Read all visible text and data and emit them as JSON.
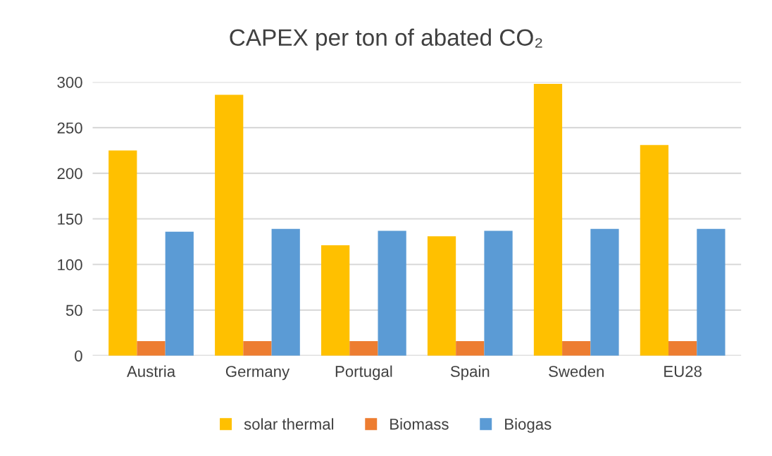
{
  "chart_data": {
    "type": "bar",
    "title": "CAPEX per ton of abated CO₂",
    "categories": [
      "Austria",
      "Germany",
      "Portugal",
      "Spain",
      "Sweden",
      "EU28"
    ],
    "series": [
      {
        "name": "solar thermal",
        "color": "#ffc000",
        "values": [
          225,
          286,
          121,
          131,
          298,
          231
        ]
      },
      {
        "name": "Biomass",
        "color": "#ed7d31",
        "values": [
          16,
          16,
          16,
          16,
          16,
          16
        ]
      },
      {
        "name": "Biogas",
        "color": "#5b9bd5",
        "values": [
          136,
          139,
          137,
          137,
          139,
          139
        ]
      }
    ],
    "ylim": [
      0,
      300
    ],
    "yticks": [
      0,
      50,
      100,
      150,
      200,
      250,
      300
    ],
    "grid": "y",
    "legend": "bottom"
  }
}
